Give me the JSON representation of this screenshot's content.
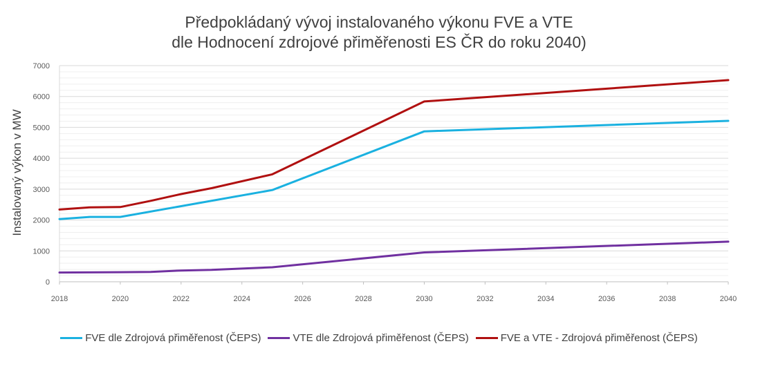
{
  "chart_data": {
    "type": "line",
    "title": "Předpokládaný vývoj instalovaného výkonu FVE a VTE",
    "subtitle": "dle Hodnocení zdrojové přiměřenosti ES ČR do roku 2040)",
    "xlabel": "",
    "ylabel": "Instalovaný výkon v MW",
    "xlim": [
      2018,
      2040
    ],
    "ylim": [
      0,
      7000
    ],
    "xticks": [
      2018,
      2020,
      2022,
      2024,
      2026,
      2028,
      2030,
      2032,
      2034,
      2036,
      2038,
      2040
    ],
    "yticks": [
      0,
      1000,
      2000,
      3000,
      4000,
      5000,
      6000,
      7000
    ],
    "grid": true,
    "legend_position": "bottom",
    "series": [
      {
        "name": "FVE dle Zdrojová přiměřenost (ČEPS)",
        "color": "#1ab1e0",
        "x": [
          2018,
          2019,
          2020,
          2025,
          2030,
          2040
        ],
        "values": [
          2030,
          2100,
          2100,
          2970,
          4870,
          5210
        ]
      },
      {
        "name": "VTE dle Zdrojová přiměřenost (ČEPS)",
        "color": "#7030a0",
        "x": [
          2018,
          2019,
          2020,
          2021,
          2022,
          2023,
          2025,
          2030,
          2040
        ],
        "values": [
          300,
          305,
          310,
          320,
          365,
          385,
          470,
          950,
          1300
        ]
      },
      {
        "name": "FVE a VTE - Zdrojová přiměřenost (ČEPS)",
        "color": "#b01010",
        "x": [
          2018,
          2019,
          2020,
          2021,
          2022,
          2023,
          2025,
          2030,
          2040
        ],
        "values": [
          2340,
          2410,
          2420,
          2620,
          2840,
          3030,
          3480,
          5840,
          6530
        ]
      }
    ]
  }
}
